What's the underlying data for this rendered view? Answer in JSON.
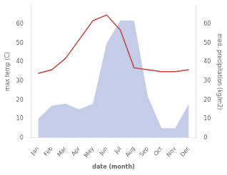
{
  "chart_data": {
    "type": "line",
    "xlabel": "date (month)",
    "ylabel": "max temp (C)",
    "y2label": "med. precipitation (kg/m2)",
    "categories": [
      "Jan",
      "Feb",
      "Mar",
      "Apr",
      "May",
      "Jun",
      "Jul",
      "Aug",
      "Sep",
      "Oct",
      "Nov",
      "Dec"
    ],
    "series": [
      {
        "type": "line",
        "color": "#c0413a",
        "values": [
          34,
          36,
          42,
          52,
          62,
          65,
          57,
          37,
          36,
          35,
          35,
          36
        ]
      },
      {
        "type": "area",
        "color": "#c5cce8",
        "axis": "y2",
        "values": [
          10,
          17,
          18,
          15,
          18,
          50,
          62,
          62,
          22,
          5,
          5,
          18
        ]
      }
    ],
    "ylim": [
      0,
      70
    ],
    "yticks": [
      0,
      10,
      20,
      30,
      40,
      50,
      60
    ],
    "y2lim": [
      0,
      70
    ],
    "y2ticks": [
      0,
      10,
      20,
      30,
      40,
      50,
      60
    ],
    "grid": false
  }
}
